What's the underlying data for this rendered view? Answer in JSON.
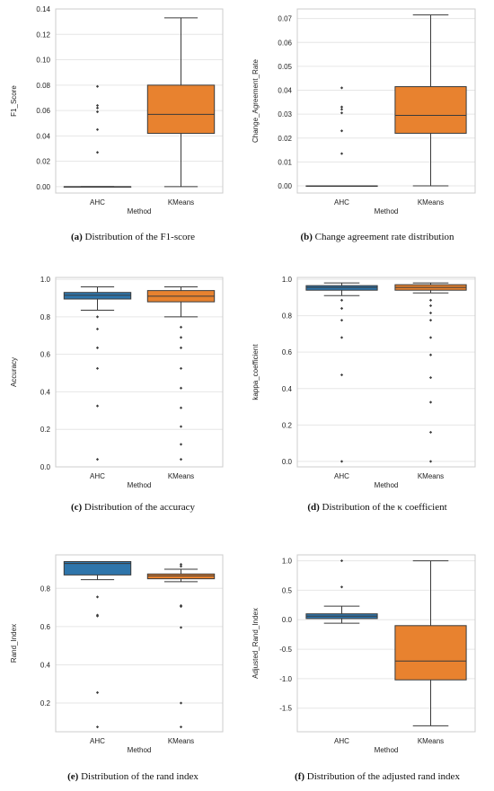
{
  "panels": [
    {
      "caption_tag": "(a)",
      "caption_text": "Distribution of the F1-score",
      "chart_data": {
        "type": "box",
        "xlabel": "Method",
        "ylabel": "F1_Score",
        "categories": [
          "AHC",
          "KMeans"
        ],
        "ylim": [
          -0.005,
          0.14
        ],
        "yticks": [
          0.0,
          0.02,
          0.04,
          0.06,
          0.08,
          0.1,
          0.12,
          0.14
        ],
        "ytick_labels": [
          "0.00",
          "0.02",
          "0.04",
          "0.06",
          "0.08",
          "0.10",
          "0.12",
          "0.14"
        ],
        "boxes": [
          {
            "category": "AHC",
            "min": 0.0,
            "q1": 0.0,
            "median": 0.0,
            "q3": 0.0,
            "max": 0.0,
            "outliers": [
              0.027,
              0.045,
              0.059,
              0.062,
              0.064,
              0.079
            ]
          },
          {
            "category": "KMeans",
            "min": 0.0,
            "q1": 0.042,
            "median": 0.057,
            "q3": 0.08,
            "max": 0.133,
            "outliers": []
          }
        ]
      }
    },
    {
      "caption_tag": "(b)",
      "caption_text": "Change agreement rate distribution",
      "chart_data": {
        "type": "box",
        "xlabel": "Method",
        "ylabel": "Change_Agreement_Rate",
        "categories": [
          "AHC",
          "KMeans"
        ],
        "ylim": [
          -0.003,
          0.074
        ],
        "yticks": [
          0.0,
          0.01,
          0.02,
          0.03,
          0.04,
          0.05,
          0.06,
          0.07
        ],
        "ytick_labels": [
          "0.00",
          "0.01",
          "0.02",
          "0.03",
          "0.04",
          "0.05",
          "0.06",
          "0.07"
        ],
        "boxes": [
          {
            "category": "AHC",
            "min": 0.0,
            "q1": 0.0,
            "median": 0.0,
            "q3": 0.0,
            "max": 0.0,
            "outliers": [
              0.0135,
              0.023,
              0.0305,
              0.032,
              0.033,
              0.041
            ]
          },
          {
            "category": "KMeans",
            "min": 0.0,
            "q1": 0.022,
            "median": 0.0295,
            "q3": 0.0415,
            "max": 0.0715,
            "outliers": []
          }
        ]
      }
    },
    {
      "caption_tag": "(c)",
      "caption_text": "Distribution of the accuracy",
      "chart_data": {
        "type": "box",
        "xlabel": "Method",
        "ylabel": "Accuracy",
        "categories": [
          "AHC",
          "KMeans"
        ],
        "ylim": [
          0.0,
          1.01
        ],
        "yticks": [
          0.0,
          0.2,
          0.4,
          0.6,
          0.8,
          1.0
        ],
        "ytick_labels": [
          "0.0",
          "0.2",
          "0.4",
          "0.6",
          "0.8",
          "1.0"
        ],
        "boxes": [
          {
            "category": "AHC",
            "min": 0.835,
            "q1": 0.895,
            "median": 0.915,
            "q3": 0.93,
            "max": 0.96,
            "outliers": [
              0.04,
              0.325,
              0.525,
              0.635,
              0.735,
              0.8
            ]
          },
          {
            "category": "KMeans",
            "min": 0.8,
            "q1": 0.88,
            "median": 0.91,
            "q3": 0.94,
            "max": 0.96,
            "outliers": [
              0.04,
              0.12,
              0.215,
              0.315,
              0.42,
              0.525,
              0.635,
              0.69,
              0.745
            ]
          }
        ]
      }
    },
    {
      "caption_tag": "(d)",
      "caption_text": "Distribution of the κ coefficient",
      "chart_data": {
        "type": "box",
        "xlabel": "Method",
        "ylabel": "kappa_coefficient",
        "categories": [
          "AHC",
          "KMeans"
        ],
        "ylim": [
          -0.03,
          1.01
        ],
        "yticks": [
          0.0,
          0.2,
          0.4,
          0.6,
          0.8,
          1.0
        ],
        "ytick_labels": [
          "0.0",
          "0.2",
          "0.4",
          "0.6",
          "0.8",
          "1.0"
        ],
        "boxes": [
          {
            "category": "AHC",
            "min": 0.91,
            "q1": 0.94,
            "median": 0.955,
            "q3": 0.965,
            "max": 0.98,
            "outliers": [
              0.0,
              0.475,
              0.68,
              0.775,
              0.84,
              0.885
            ]
          },
          {
            "category": "KMeans",
            "min": 0.925,
            "q1": 0.94,
            "median": 0.955,
            "q3": 0.97,
            "max": 0.98,
            "outliers": [
              0.0,
              0.16,
              0.325,
              0.46,
              0.585,
              0.68,
              0.775,
              0.815,
              0.855,
              0.885
            ]
          }
        ]
      }
    },
    {
      "caption_tag": "(e)",
      "caption_text": "Distribution of the rand index",
      "chart_data": {
        "type": "box",
        "xlabel": "Method",
        "ylabel": "Rand_Index",
        "categories": [
          "AHC",
          "KMeans"
        ],
        "ylim": [
          0.05,
          0.975
        ],
        "yticks": [
          0.2,
          0.4,
          0.6,
          0.8
        ],
        "ytick_labels": [
          "0.2",
          "0.4",
          "0.6",
          "0.8"
        ],
        "boxes": [
          {
            "category": "AHC",
            "min": 0.845,
            "q1": 0.87,
            "median": 0.93,
            "q3": 0.94,
            "max": 0.94,
            "outliers": [
              0.075,
              0.255,
              0.655,
              0.66,
              0.755
            ]
          },
          {
            "category": "KMeans",
            "min": 0.835,
            "q1": 0.85,
            "median": 0.865,
            "q3": 0.875,
            "max": 0.9,
            "outliers": [
              0.075,
              0.2,
              0.595,
              0.705,
              0.71,
              0.915,
              0.925
            ]
          }
        ]
      }
    },
    {
      "caption_tag": "(f)",
      "caption_text": "Distribution of the adjusted rand index",
      "chart_data": {
        "type": "box",
        "xlabel": "Method",
        "ylabel": "Adjusted_Rand_Index",
        "categories": [
          "AHC",
          "KMeans"
        ],
        "ylim": [
          -1.9,
          1.1
        ],
        "yticks": [
          -1.5,
          -1.0,
          -0.5,
          0.0,
          0.5,
          1.0
        ],
        "ytick_labels": [
          "-1.5",
          "-1.0",
          "-0.5",
          "0.0",
          "0.5",
          "1.0"
        ],
        "boxes": [
          {
            "category": "AHC",
            "min": -0.06,
            "q1": 0.02,
            "median": 0.06,
            "q3": 0.1,
            "max": 0.23,
            "outliers": [
              0.555,
              1.0
            ]
          },
          {
            "category": "KMeans",
            "min": -1.8,
            "q1": -1.02,
            "median": -0.7,
            "q3": -0.1,
            "max": 1.0,
            "outliers": []
          }
        ]
      }
    }
  ],
  "colors": {
    "AHC": "#2e75ab",
    "KMeans": "#e8822f",
    "grid": "#e6e6e6",
    "frame": "#cccccc",
    "line": "#3a3a3a",
    "text": "#222222"
  }
}
